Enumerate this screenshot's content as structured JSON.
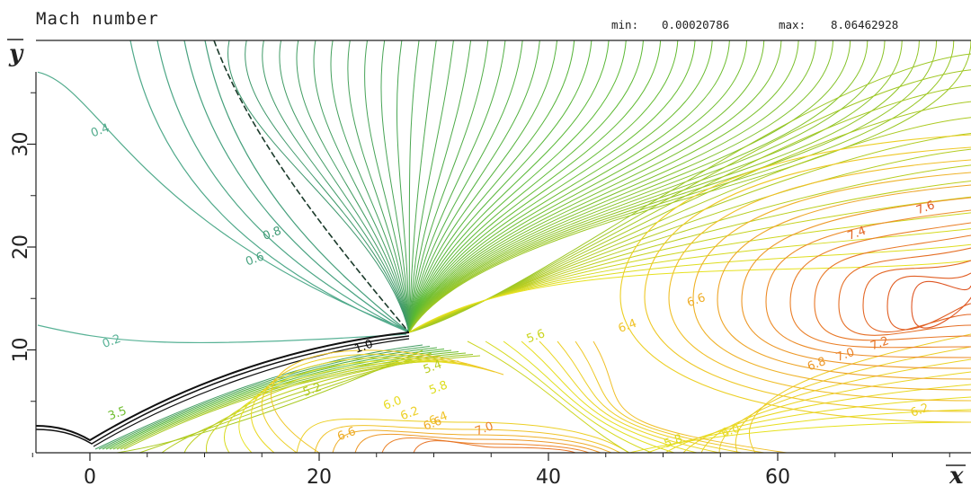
{
  "chart_data": {
    "type": "contour",
    "title": "Mach number",
    "min_label": "min:",
    "min_value": "0.00020786",
    "max_label": "max:",
    "max_value": "8.06462928",
    "xlabel": "x",
    "ylabel": "y",
    "xlim": [
      -5,
      77
    ],
    "ylim": [
      0,
      40
    ],
    "x_ticks": [
      0,
      20,
      40,
      60
    ],
    "y_ticks": [
      10,
      20,
      30
    ],
    "sonic_line_level": 1.0,
    "contour_labels": [
      {
        "text": "0.4",
        "x": 1,
        "y": 31
      },
      {
        "text": "0.2",
        "x": 2,
        "y": 10.5
      },
      {
        "text": "0.8",
        "x": 16,
        "y": 21
      },
      {
        "text": "0.6",
        "x": 14.5,
        "y": 18.5
      },
      {
        "text": "1.0",
        "x": 24,
        "y": 10
      },
      {
        "text": "5.2",
        "x": 19.5,
        "y": 5.8
      },
      {
        "text": "5.4",
        "x": 30,
        "y": 8
      },
      {
        "text": "5.6",
        "x": 39,
        "y": 11
      },
      {
        "text": "5.8",
        "x": 30.5,
        "y": 6
      },
      {
        "text": "6.0",
        "x": 26.5,
        "y": 4.5
      },
      {
        "text": "6.2",
        "x": 28,
        "y": 3.5
      },
      {
        "text": "6.4",
        "x": 30.5,
        "y": 3
      },
      {
        "text": "6.6",
        "x": 30,
        "y": 2.5
      },
      {
        "text": "6.6",
        "x": 22.5,
        "y": 1.5
      },
      {
        "text": "7.0",
        "x": 34.5,
        "y": 2
      },
      {
        "text": "5.8",
        "x": 51,
        "y": 0.8
      },
      {
        "text": "6.0",
        "x": 56,
        "y": 1.8
      },
      {
        "text": "6.2",
        "x": 72.5,
        "y": 3.8
      },
      {
        "text": "6.4",
        "x": 47,
        "y": 12
      },
      {
        "text": "6.6",
        "x": 53,
        "y": 14.5
      },
      {
        "text": "6.8",
        "x": 63.5,
        "y": 8.3
      },
      {
        "text": "7.0",
        "x": 66,
        "y": 9.2
      },
      {
        "text": "7.2",
        "x": 69,
        "y": 10.3
      },
      {
        "text": "7.4",
        "x": 67,
        "y": 21
      },
      {
        "text": "7.6",
        "x": 73,
        "y": 23.5
      },
      {
        "text": "3.5",
        "x": 2.5,
        "y": 3.5
      }
    ]
  }
}
